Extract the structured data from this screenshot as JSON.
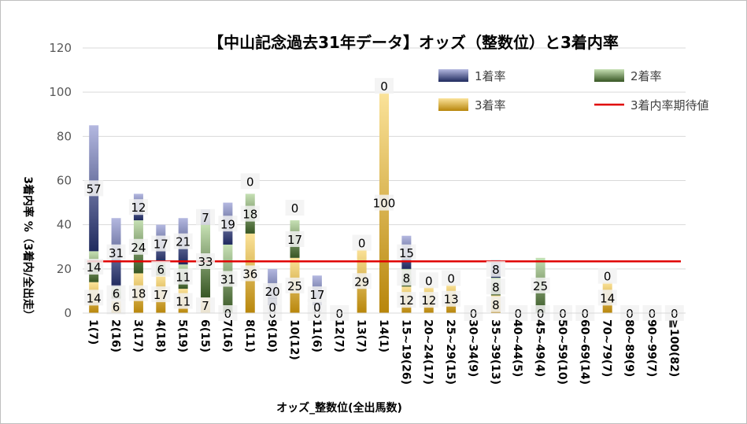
{
  "chart_data": {
    "type": "bar",
    "stacked": true,
    "title": "【中山記念過去31年データ】オッズ（整数位）と3着内率",
    "xlabel": "オッズ_整数位(全出馬数)",
    "ylabel": "3着内率 %（3着内/全出走）",
    "ylim": [
      0,
      120
    ],
    "yticks": [
      "0",
      "20",
      "40",
      "60",
      "80",
      "100",
      "120"
    ],
    "grid": true,
    "legend_position": "top-right",
    "categories": [
      "1(7)",
      "2(16)",
      "3(17)",
      "4(18)",
      "5(19)",
      "6(15)",
      "7(16)",
      "8(11)",
      "9(10)",
      "10(12)",
      "11(6)",
      "12(7)",
      "13(7)",
      "14(1)",
      "15~19(26)",
      "20~24(17)",
      "25~29(15)",
      "30~34(9)",
      "35~39(13)",
      "40~44(5)",
      "45~49(4)",
      "50~59(10)",
      "60~69(14)",
      "70~79(7)",
      "80~89(9)",
      "90~99(7)",
      "≧100(82)"
    ],
    "series": [
      {
        "name": "3着率",
        "color_top": "#fbe39a",
        "color_bottom": "#b8860b",
        "values": [
          14,
          6,
          18,
          17,
          11,
          7,
          0,
          36,
          0,
          25,
          0,
          0,
          29,
          100,
          12,
          12,
          13,
          0,
          8,
          0,
          0,
          0,
          0,
          14,
          0,
          0,
          0
        ],
        "labels": [
          "14",
          "6",
          "18",
          "17",
          "11",
          "7",
          "0",
          "36",
          "0",
          "25",
          "0",
          "0",
          "29",
          "100",
          "12",
          "12",
          "13",
          "0",
          "8",
          "0",
          "0",
          "0",
          "0",
          "14",
          "0",
          "0",
          "0"
        ]
      },
      {
        "name": "2着率",
        "color_top": "#c6e0b4",
        "color_bottom": "#375623",
        "values": [
          14,
          6,
          24,
          6,
          11,
          33,
          31,
          18,
          0,
          17,
          0,
          0,
          0,
          0,
          8,
          0,
          0,
          0,
          8,
          0,
          25,
          0,
          0,
          0,
          0,
          0,
          0
        ],
        "labels": [
          "14",
          "6",
          "24",
          "6",
          "11",
          "33",
          "31",
          "18",
          "0",
          "17",
          "0",
          "",
          "0",
          "0",
          "8",
          "0",
          "0",
          "",
          "8",
          "",
          "25",
          "",
          "",
          "0",
          "",
          "",
          ""
        ]
      },
      {
        "name": "1着率",
        "color_top": "#b4b8e0",
        "color_bottom": "#1f2a5e",
        "values": [
          57,
          31,
          12,
          17,
          21,
          7,
          19,
          0,
          20,
          0,
          17,
          0,
          0,
          0,
          15,
          0,
          0,
          0,
          8,
          0,
          0,
          0,
          0,
          0,
          0,
          0,
          0
        ],
        "labels": [
          "57",
          "31",
          "12",
          "17",
          "21",
          "7",
          "19",
          "0",
          "20",
          "0",
          "17",
          "",
          "",
          "",
          "15",
          "",
          "",
          "",
          "8",
          "",
          "",
          "",
          "",
          "",
          "",
          "",
          ""
        ]
      }
    ],
    "reference_line": {
      "name": "3着内率期待値",
      "value": 23.4,
      "color": "#e00000"
    },
    "legend": [
      {
        "name": "1着率",
        "kind": "bar",
        "color_top": "#b4b8e0",
        "color_bottom": "#1f2a5e"
      },
      {
        "name": "2着率",
        "kind": "bar",
        "color_top": "#c6e0b4",
        "color_bottom": "#375623"
      },
      {
        "name": "3着率",
        "kind": "bar",
        "color_top": "#fbe39a",
        "color_bottom": "#b8860b"
      },
      {
        "name": "3着内率期待値",
        "kind": "line",
        "color": "#e00000"
      }
    ]
  }
}
